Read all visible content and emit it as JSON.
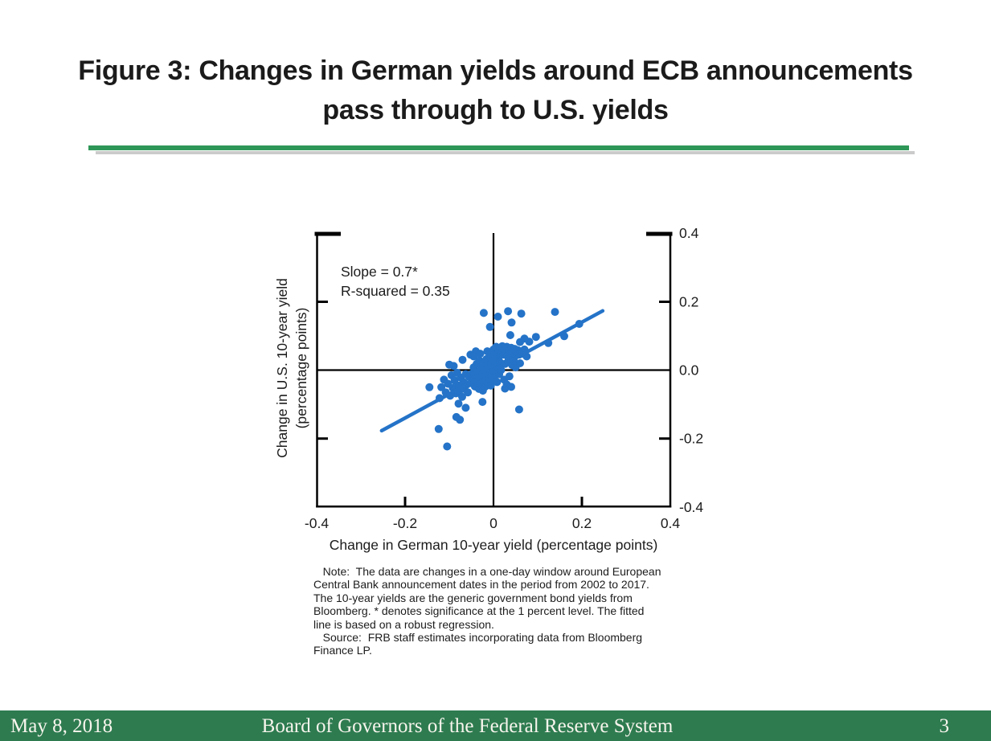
{
  "slide": {
    "title_line1": "Figure 3: Changes in German yields around ECB announcements",
    "title_line2": "pass through to U.S. yields"
  },
  "divider_color": "#2e9758",
  "chart_data": {
    "type": "scatter",
    "xlabel": "Change in German 10-year yield (percentage points)",
    "ylabel_line1": "Change in U.S. 10-year yield",
    "ylabel_line2": "(percentage points)",
    "annotation": {
      "slope_label": "Slope = 0.7*",
      "r_squared_label": "R-squared = 0.35"
    },
    "xlim": [
      -0.4,
      0.4
    ],
    "ylim": [
      -0.4,
      0.4
    ],
    "x_tick_labels": [
      "-0.4",
      "-0.2",
      "0",
      "0.2",
      "0.4"
    ],
    "y_tick_labels": [
      "0.4",
      "0.2",
      "0.0",
      "-0.2",
      "-0.4"
    ],
    "point_color": "#2473c8",
    "fit_line": {
      "x1": -0.253,
      "y1": -0.177,
      "x2": 0.247,
      "y2": 0.173,
      "slope": 0.7,
      "r_squared": 0.35
    },
    "points": [
      [
        -0.055,
        -0.02
      ],
      [
        -0.05,
        -0.038
      ],
      [
        -0.048,
        -0.01
      ],
      [
        -0.045,
        0.008
      ],
      [
        -0.044,
        -0.028
      ],
      [
        -0.042,
        -0.048
      ],
      [
        -0.04,
        -0.015
      ],
      [
        -0.038,
        0.018
      ],
      [
        -0.036,
        -0.032
      ],
      [
        -0.035,
        -0.005
      ],
      [
        -0.033,
        -0.055
      ],
      [
        -0.032,
        0.028
      ],
      [
        -0.03,
        -0.022
      ],
      [
        -0.028,
        -0.04
      ],
      [
        -0.027,
        0.01
      ],
      [
        -0.025,
        -0.012
      ],
      [
        -0.024,
        -0.06
      ],
      [
        -0.022,
        0.022
      ],
      [
        -0.02,
        -0.03
      ],
      [
        -0.019,
        -0.003
      ],
      [
        -0.018,
        -0.048
      ],
      [
        -0.016,
        0.032
      ],
      [
        -0.015,
        -0.018
      ],
      [
        -0.013,
        -0.038
      ],
      [
        -0.012,
        0.008
      ],
      [
        -0.01,
        -0.025
      ],
      [
        -0.009,
        0.04
      ],
      [
        -0.008,
        -0.008
      ],
      [
        -0.006,
        -0.045
      ],
      [
        -0.005,
        0.018
      ],
      [
        -0.004,
        -0.015
      ],
      [
        -0.002,
        0.03
      ],
      [
        -0.001,
        -0.032
      ],
      [
        0.001,
        0.005
      ],
      [
        0.002,
        -0.02
      ],
      [
        0.004,
        0.042
      ],
      [
        0.005,
        -0.005
      ],
      [
        0.007,
        0.025
      ],
      [
        0.008,
        -0.035
      ],
      [
        0.01,
        0.012
      ],
      [
        0.012,
        0.038
      ],
      [
        0.013,
        -0.012
      ],
      [
        0.015,
        0.022
      ],
      [
        0.017,
        0.0
      ],
      [
        0.018,
        0.045
      ],
      [
        -0.118,
        -0.05
      ],
      [
        -0.112,
        -0.028
      ],
      [
        -0.108,
        -0.065
      ],
      [
        -0.103,
        -0.04
      ],
      [
        -0.098,
        -0.075
      ],
      [
        -0.095,
        -0.015
      ],
      [
        -0.092,
        -0.052
      ],
      [
        -0.088,
        -0.03
      ],
      [
        -0.085,
        -0.068
      ],
      [
        -0.082,
        -0.008
      ],
      [
        -0.08,
        -0.045
      ],
      [
        -0.077,
        -0.06
      ],
      [
        -0.074,
        -0.022
      ],
      [
        -0.071,
        -0.078
      ],
      [
        -0.068,
        -0.035
      ],
      [
        -0.066,
        -0.055
      ],
      [
        -0.063,
        -0.012
      ],
      [
        -0.06,
        -0.042
      ],
      [
        -0.058,
        -0.065
      ],
      [
        -0.09,
        0.012
      ],
      [
        0.0,
        0.06
      ],
      [
        0.003,
        0.052
      ],
      [
        0.006,
        0.068
      ],
      [
        0.009,
        0.048
      ],
      [
        0.012,
        0.058
      ],
      [
        0.015,
        0.065
      ],
      [
        0.018,
        0.052
      ],
      [
        0.02,
        0.07
      ],
      [
        0.022,
        0.045
      ],
      [
        0.025,
        0.06
      ],
      [
        0.028,
        0.05
      ],
      [
        0.03,
        0.068
      ],
      [
        0.032,
        0.042
      ],
      [
        0.035,
        0.058
      ],
      [
        0.038,
        0.048
      ],
      [
        0.04,
        0.065
      ],
      [
        0.043,
        0.055
      ],
      [
        0.046,
        0.04
      ],
      [
        0.048,
        0.062
      ],
      [
        0.052,
        0.05
      ],
      [
        0.055,
        0.058
      ],
      [
        0.058,
        0.045
      ],
      [
        0.062,
        0.055
      ],
      [
        0.066,
        0.048
      ],
      [
        0.07,
        0.06
      ],
      [
        -0.052,
        0.045
      ],
      [
        -0.04,
        0.055
      ],
      [
        -0.03,
        0.048
      ],
      [
        0.024,
        -0.028
      ],
      [
        0.03,
        -0.042
      ],
      [
        0.036,
        -0.018
      ],
      [
        0.042,
        0.015
      ],
      [
        0.046,
        0.028
      ],
      [
        0.05,
        0.008
      ],
      [
        0.026,
        0.018
      ],
      [
        0.034,
        0.032
      ],
      [
        -0.014,
        0.055
      ],
      [
        -0.07,
        0.03
      ],
      [
        0.06,
        0.02
      ],
      [
        0.075,
        0.04
      ],
      [
        -0.022,
        0.167
      ],
      [
        0.01,
        0.156
      ],
      [
        0.033,
        0.172
      ],
      [
        0.063,
        0.165
      ],
      [
        0.139,
        0.17
      ],
      [
        0.038,
        0.102
      ],
      [
        0.041,
        0.139
      ],
      [
        0.06,
        0.082
      ],
      [
        0.081,
        0.083
      ],
      [
        0.096,
        0.097
      ],
      [
        0.124,
        0.079
      ],
      [
        0.16,
        0.099
      ],
      [
        0.194,
        0.135
      ],
      [
        -0.008,
        0.126
      ],
      [
        -0.045,
        0.04
      ],
      [
        -0.1,
        0.016
      ],
      [
        -0.145,
        -0.05
      ],
      [
        -0.122,
        -0.082
      ],
      [
        0.058,
        -0.115
      ],
      [
        0.04,
        -0.049
      ],
      [
        0.026,
        -0.054
      ],
      [
        -0.076,
        -0.145
      ],
      [
        -0.084,
        -0.137
      ],
      [
        -0.063,
        -0.11
      ],
      [
        -0.105,
        -0.223
      ],
      [
        -0.124,
        -0.172
      ],
      [
        -0.025,
        -0.093
      ],
      [
        -0.079,
        -0.098
      ],
      [
        0.07,
        0.092
      ]
    ]
  },
  "note": {
    "lines": [
      "   Note:  The data are changes in a one-day window around European",
      "Central Bank announcement dates in the period from 2002 to 2017.",
      "The 10-year yields are the generic government bond yields from",
      "Bloomberg. * denotes significance at the 1 percent level. The fitted",
      "line is based on a robust regression.",
      "   Source:  FRB staff estimates incorporating data from Bloomberg",
      "Finance LP."
    ]
  },
  "footer": {
    "date": "May 8, 2018",
    "organization": "Board of Governors of the Federal Reserve System",
    "page_number": "3",
    "bar_color": "#2e7b50"
  }
}
